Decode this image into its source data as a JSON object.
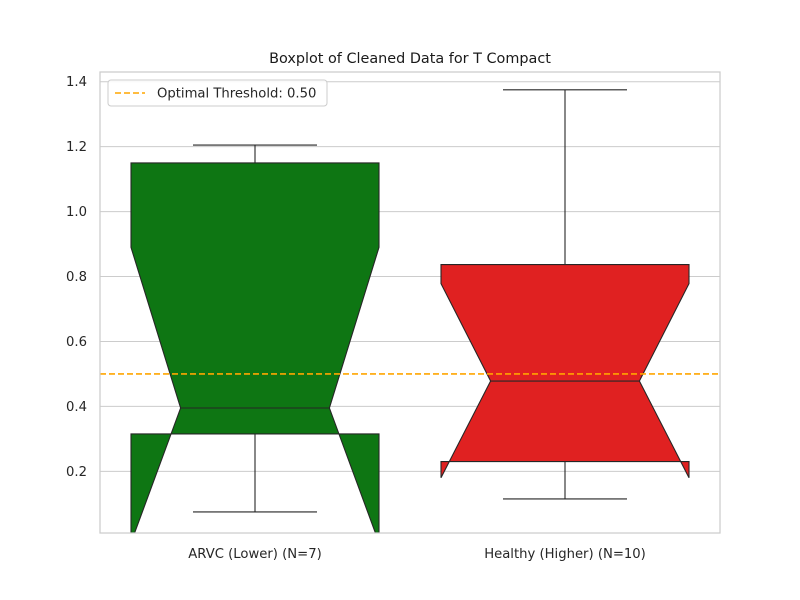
{
  "chart_data": {
    "type": "boxplot",
    "title": "Boxplot of Cleaned Data for T Compact",
    "xlabel": "",
    "ylabel": "",
    "ylim": [
      0.01,
      1.43
    ],
    "yticks": [
      0.2,
      0.4,
      0.6,
      0.8,
      1.0,
      1.2,
      1.4
    ],
    "ytick_labels": [
      "0.2",
      "0.4",
      "0.6",
      "0.8",
      "1.0",
      "1.2",
      "1.4"
    ],
    "notched": true,
    "grid": true,
    "categories": [
      "ARVC (Lower) (N=7)",
      "Healthy (Higher) (N=10)"
    ],
    "boxes": [
      {
        "label": "ARVC (Lower) (N=7)",
        "whisker_low": 0.075,
        "q1": 0.315,
        "median": 0.395,
        "q3": 1.15,
        "whisker_high": 1.205,
        "notch_low": -0.02,
        "notch_high": 0.89,
        "color": "#0e7613"
      },
      {
        "label": "Healthy (Higher) (N=10)",
        "whisker_low": 0.115,
        "q1": 0.23,
        "median": 0.478,
        "q3": 0.837,
        "whisker_high": 1.375,
        "notch_low": 0.18,
        "notch_high": 0.778,
        "color": "#e02121"
      }
    ],
    "threshold": {
      "value": 0.5,
      "label": "Optimal Threshold: 0.50",
      "color": "#ffa500",
      "style": "dashed"
    },
    "legend": {
      "location": "top-left"
    }
  }
}
